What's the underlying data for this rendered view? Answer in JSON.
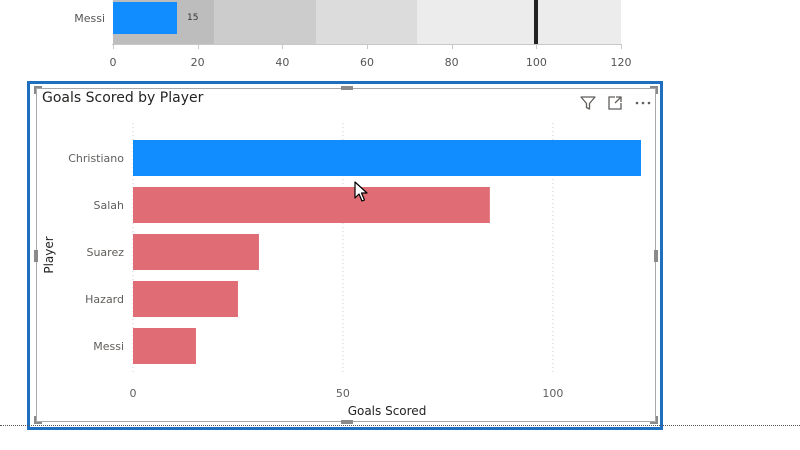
{
  "top_visual": {
    "row_label": "Messi",
    "bar_value": 15,
    "bar_value_label": "15",
    "target_value": 100,
    "axis_ticks": [
      "0",
      "20",
      "40",
      "60",
      "80",
      "100",
      "120"
    ],
    "bar_color": "#118dff"
  },
  "visual": {
    "title": "Goals Scored by Player",
    "header_icons": [
      "filter-icon",
      "focus-mode-icon",
      "more-options-icon"
    ],
    "y_axis_title": "Player",
    "x_axis_title": "Goals Scored"
  },
  "chart_data": {
    "type": "bar",
    "orientation": "horizontal",
    "title": "Goals Scored by Player",
    "xlabel": "Goals Scored",
    "ylabel": "Player",
    "categories": [
      "Christiano",
      "Salah",
      "Suarez",
      "Hazard",
      "Messi"
    ],
    "values": [
      121,
      85,
      30,
      25,
      15
    ],
    "highlighted": "Christiano",
    "colors": {
      "highlight": "#118dff",
      "default": "#e06c75"
    },
    "x_ticks": [
      0,
      50,
      100
    ],
    "xlim": [
      0,
      121
    ],
    "grid": "vertical dotted"
  }
}
